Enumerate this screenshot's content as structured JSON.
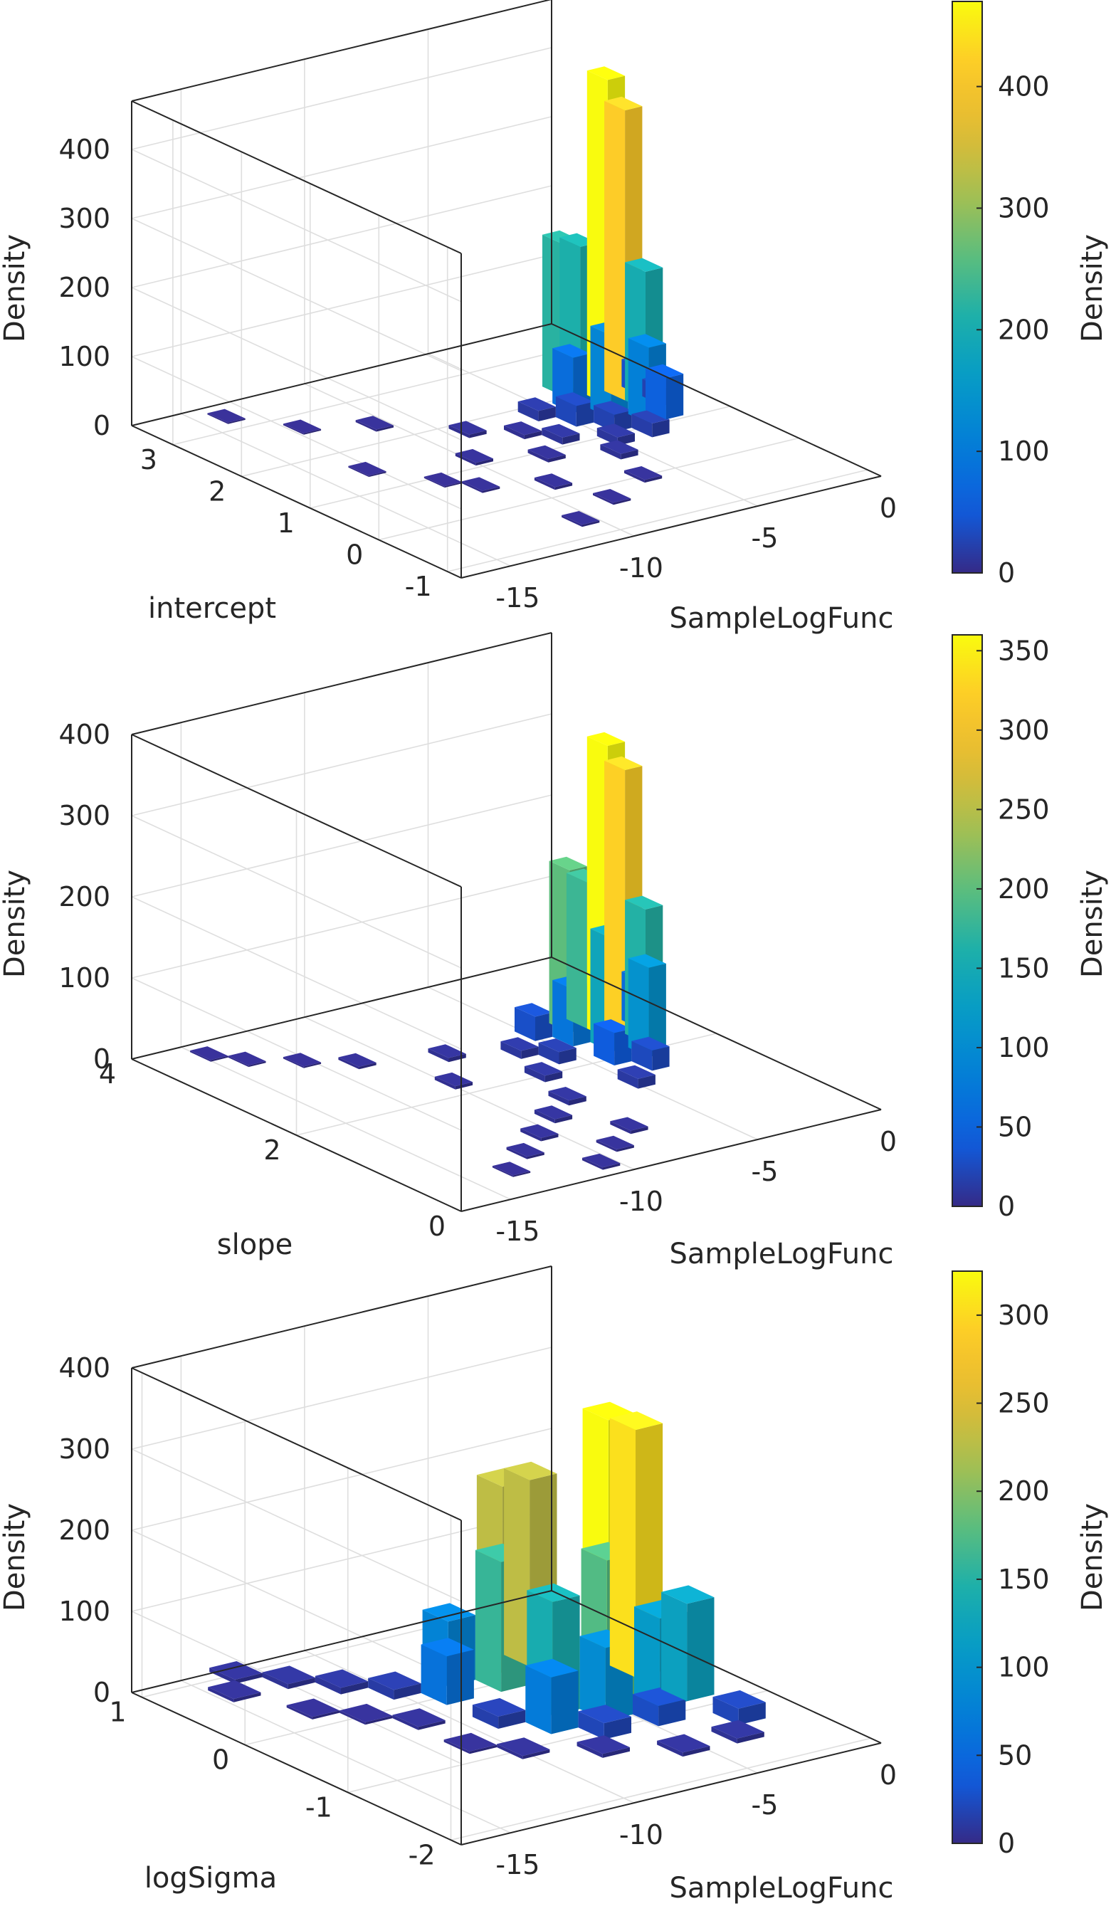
{
  "figure": {
    "background": "#ffffff",
    "text_color": "#262626"
  },
  "colormap": "parula",
  "chart_data": [
    {
      "type": "bar3d-histogram",
      "title": "",
      "xlabel": "SampleLogFunc",
      "ylabel": "intercept",
      "zlabel": "Density",
      "xlim": [
        -17,
        0
      ],
      "ylim": [
        -1.2,
        3.6
      ],
      "zlim": [
        0,
        470
      ],
      "xticks": [
        -15,
        -10,
        -5,
        0
      ],
      "yticks": [
        -1,
        0,
        1,
        2,
        3
      ],
      "zticks": [
        0,
        100,
        200,
        300,
        400
      ],
      "colorbar": {
        "label": "Density",
        "range": [
          0,
          470
        ],
        "ticks": [
          0,
          100,
          200,
          300,
          400
        ]
      },
      "bin_width": {
        "x": 0.7,
        "y": 0.3
      },
      "bars": [
        {
          "x": -2.8,
          "y": 1.8,
          "z": 470
        },
        {
          "x": -2.1,
          "y": 1.8,
          "z": 420
        },
        {
          "x": -3.5,
          "y": 2.2,
          "z": 220
        },
        {
          "x": -2.8,
          "y": 2.2,
          "z": 210
        },
        {
          "x": -2.1,
          "y": 1.5,
          "z": 200
        },
        {
          "x": -3.5,
          "y": 1.5,
          "z": 120
        },
        {
          "x": -2.8,
          "y": 1.2,
          "z": 110
        },
        {
          "x": -4.2,
          "y": 1.8,
          "z": 80
        },
        {
          "x": -2.1,
          "y": 1.2,
          "z": 60
        },
        {
          "x": -1.4,
          "y": 1.8,
          "z": 40
        },
        {
          "x": -1.4,
          "y": 1.5,
          "z": 25
        },
        {
          "x": -4.9,
          "y": 1.5,
          "z": 30
        },
        {
          "x": -4.2,
          "y": 1.2,
          "z": 25
        },
        {
          "x": -3.5,
          "y": 0.9,
          "z": 20
        },
        {
          "x": -5.6,
          "y": 1.8,
          "z": 15
        },
        {
          "x": -4.9,
          "y": 0.9,
          "z": 12
        },
        {
          "x": -6.3,
          "y": 1.2,
          "z": 10
        },
        {
          "x": -5.6,
          "y": 0.6,
          "z": 8
        },
        {
          "x": -7.0,
          "y": 1.5,
          "z": 6
        },
        {
          "x": -7.7,
          "y": 0.9,
          "z": 5
        },
        {
          "x": -8.4,
          "y": 1.8,
          "z": 5
        },
        {
          "x": -9.1,
          "y": 0.3,
          "z": 4
        },
        {
          "x": -9.8,
          "y": 1.2,
          "z": 4
        },
        {
          "x": -10.5,
          "y": 2.4,
          "z": 3
        },
        {
          "x": -11.2,
          "y": 0.6,
          "z": 3
        },
        {
          "x": -12.6,
          "y": 2.7,
          "z": 2
        },
        {
          "x": -14.0,
          "y": 3.3,
          "z": 2
        },
        {
          "x": -13.3,
          "y": 1.5,
          "z": 2
        },
        {
          "x": -10.5,
          "y": -0.6,
          "z": 3
        },
        {
          "x": -8.4,
          "y": -0.3,
          "z": 3
        },
        {
          "x": -6.3,
          "y": 0.0,
          "z": 4
        },
        {
          "x": -11.9,
          "y": 0.9,
          "z": 2
        }
      ]
    },
    {
      "type": "bar3d-histogram",
      "title": "",
      "xlabel": "SampleLogFunc",
      "ylabel": "slope",
      "zlabel": "Density",
      "xlim": [
        -17,
        0
      ],
      "ylim": [
        0,
        4
      ],
      "zlim": [
        0,
        400
      ],
      "xticks": [
        -15,
        -10,
        -5,
        0
      ],
      "yticks": [
        0,
        2,
        4
      ],
      "zticks": [
        0,
        100,
        200,
        300,
        400
      ],
      "colorbar": {
        "label": "Density",
        "range": [
          0,
          360
        ],
        "ticks": [
          0,
          50,
          100,
          150,
          200,
          250,
          300,
          350
        ]
      },
      "bin_width": {
        "x": 0.7,
        "y": 0.25
      },
      "bars": [
        {
          "x": -2.8,
          "y": 2.5,
          "z": 360
        },
        {
          "x": -2.1,
          "y": 2.5,
          "z": 325
        },
        {
          "x": -3.5,
          "y": 2.75,
          "z": 200
        },
        {
          "x": -2.8,
          "y": 2.75,
          "z": 180
        },
        {
          "x": -2.1,
          "y": 2.25,
          "z": 165
        },
        {
          "x": -3.5,
          "y": 2.25,
          "z": 140
        },
        {
          "x": -2.8,
          "y": 2.0,
          "z": 110
        },
        {
          "x": -4.2,
          "y": 2.5,
          "z": 70
        },
        {
          "x": -1.4,
          "y": 2.5,
          "z": 60
        },
        {
          "x": -4.2,
          "y": 2.0,
          "z": 40
        },
        {
          "x": -4.9,
          "y": 2.75,
          "z": 30
        },
        {
          "x": -3.5,
          "y": 1.75,
          "z": 25
        },
        {
          "x": -5.6,
          "y": 2.25,
          "z": 15
        },
        {
          "x": -4.9,
          "y": 1.5,
          "z": 12
        },
        {
          "x": -6.3,
          "y": 2.5,
          "z": 10
        },
        {
          "x": -7.0,
          "y": 2.0,
          "z": 8
        },
        {
          "x": -7.7,
          "y": 1.5,
          "z": 6
        },
        {
          "x": -8.4,
          "y": 2.75,
          "z": 5
        },
        {
          "x": -9.1,
          "y": 1.25,
          "z": 5
        },
        {
          "x": -9.8,
          "y": 2.25,
          "z": 4
        },
        {
          "x": -10.5,
          "y": 1.0,
          "z": 4
        },
        {
          "x": -11.2,
          "y": 3.0,
          "z": 3
        },
        {
          "x": -11.9,
          "y": 0.75,
          "z": 3
        },
        {
          "x": -12.6,
          "y": 3.25,
          "z": 2
        },
        {
          "x": -13.3,
          "y": 0.5,
          "z": 2
        },
        {
          "x": -14.0,
          "y": 3.5,
          "z": 2
        },
        {
          "x": -14.7,
          "y": 3.75,
          "z": 2
        },
        {
          "x": -10.5,
          "y": 0.25,
          "z": 3
        },
        {
          "x": -9.1,
          "y": 0.5,
          "z": 3
        },
        {
          "x": -7.7,
          "y": 0.75,
          "z": 4
        }
      ]
    },
    {
      "type": "bar3d-histogram",
      "title": "",
      "xlabel": "SampleLogFunc",
      "ylabel": "logSigma",
      "zlabel": "Density",
      "xlim": [
        -17,
        0
      ],
      "ylim": [
        -2.1,
        1.1
      ],
      "zlim": [
        0,
        400
      ],
      "xticks": [
        -15,
        -10,
        -5,
        0
      ],
      "yticks": [
        -2,
        -1,
        0,
        1
      ],
      "zticks": [
        0,
        100,
        200,
        300,
        400
      ],
      "colorbar": {
        "label": "Density",
        "range": [
          0,
          325
        ],
        "ticks": [
          0,
          50,
          100,
          150,
          200,
          250,
          300
        ]
      },
      "bin_width": {
        "x": 1.1,
        "y": 0.25
      },
      "bars": [
        {
          "x": -3.3,
          "y": -0.25,
          "z": 325
        },
        {
          "x": -2.2,
          "y": -0.25,
          "z": 305
        },
        {
          "x": -5.5,
          "y": 0.25,
          "z": 230
        },
        {
          "x": -4.4,
          "y": 0.25,
          "z": 230
        },
        {
          "x": -4.4,
          "y": -0.5,
          "z": 175
        },
        {
          "x": -6.6,
          "y": 0.0,
          "z": 160
        },
        {
          "x": -6.6,
          "y": -0.5,
          "z": 140
        },
        {
          "x": -3.3,
          "y": -0.75,
          "z": 110
        },
        {
          "x": -2.2,
          "y": -0.75,
          "z": 120
        },
        {
          "x": -5.5,
          "y": -0.75,
          "z": 90
        },
        {
          "x": -7.7,
          "y": 0.25,
          "z": 80
        },
        {
          "x": -8.8,
          "y": 0.0,
          "z": 60
        },
        {
          "x": -7.7,
          "y": -0.75,
          "z": 70
        },
        {
          "x": -2.2,
          "y": -1.25,
          "z": 20
        },
        {
          "x": -4.4,
          "y": -1.0,
          "z": 25
        },
        {
          "x": -6.6,
          "y": -1.0,
          "z": 20
        },
        {
          "x": -8.8,
          "y": -0.5,
          "z": 15
        },
        {
          "x": -9.9,
          "y": 0.25,
          "z": 12
        },
        {
          "x": -11.0,
          "y": 0.5,
          "z": 8
        },
        {
          "x": -12.1,
          "y": 0.75,
          "z": 6
        },
        {
          "x": -13.2,
          "y": 1.0,
          "z": 5
        },
        {
          "x": -14.3,
          "y": 0.75,
          "z": 4
        },
        {
          "x": -11.0,
          "y": -0.25,
          "z": 4
        },
        {
          "x": -9.9,
          "y": -1.0,
          "z": 4
        },
        {
          "x": -12.1,
          "y": 0.0,
          "z": 3
        },
        {
          "x": -13.2,
          "y": 0.25,
          "z": 3
        },
        {
          "x": -5.5,
          "y": -1.5,
          "z": 5
        },
        {
          "x": -3.3,
          "y": -1.5,
          "z": 6
        },
        {
          "x": -7.7,
          "y": -1.25,
          "z": 5
        },
        {
          "x": -11.0,
          "y": -0.75,
          "z": 3
        }
      ]
    }
  ]
}
